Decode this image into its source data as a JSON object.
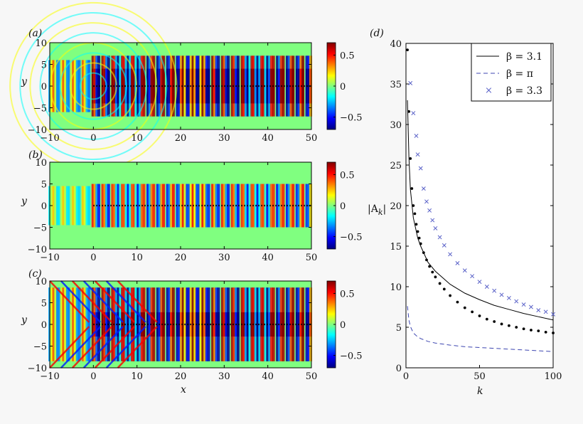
{
  "figure": {
    "panels": [
      {
        "id": "a",
        "label": "(a)"
      },
      {
        "id": "b",
        "label": "(b)"
      },
      {
        "id": "c",
        "label": "(c)"
      },
      {
        "id": "d",
        "label": "(d)"
      }
    ]
  },
  "chart_data": [
    {
      "type": "heatmap",
      "panel_label": "(a)",
      "xlabel": "",
      "ylabel": "y",
      "xlim": [
        -10,
        50
      ],
      "ylim": [
        -10,
        10
      ],
      "xticks": [
        "−10",
        "0",
        "10",
        "20",
        "30",
        "40",
        "50"
      ],
      "yticks": [
        "10",
        "5",
        "0",
        "−5",
        "−10"
      ],
      "colorbar": {
        "range": [
          -0.7,
          0.7
        ],
        "ticks": [
          "0.5",
          "0",
          "−0.5"
        ],
        "colormap": "jet"
      },
      "array_line": {
        "y": 0,
        "x_range": [
          0,
          50
        ]
      }
    },
    {
      "type": "heatmap",
      "panel_label": "(b)",
      "xlabel": "",
      "ylabel": "y",
      "xlim": [
        -10,
        50
      ],
      "ylim": [
        -10,
        10
      ],
      "xticks": [
        "−10",
        "0",
        "10",
        "20",
        "30",
        "40",
        "50"
      ],
      "yticks": [
        "10",
        "5",
        "0",
        "−5",
        "−10"
      ],
      "colorbar": {
        "range": [
          -0.7,
          0.7
        ],
        "ticks": [
          "0.5",
          "0",
          "−0.5"
        ],
        "colormap": "jet"
      },
      "array_line": {
        "y": 0,
        "x_range": [
          0,
          50
        ]
      }
    },
    {
      "type": "heatmap",
      "panel_label": "(c)",
      "xlabel": "x",
      "ylabel": "y",
      "xlim": [
        -10,
        50
      ],
      "ylim": [
        -10,
        10
      ],
      "xticks": [
        "−10",
        "0",
        "10",
        "20",
        "30",
        "40",
        "50"
      ],
      "yticks": [
        "10",
        "5",
        "0",
        "−5",
        "−10"
      ],
      "colorbar": {
        "range": [
          -0.7,
          0.7
        ],
        "ticks": [
          "0.5",
          "0",
          "−0.5"
        ],
        "colormap": "jet"
      },
      "array_line": {
        "y": 0,
        "x_range": [
          0,
          50
        ]
      }
    },
    {
      "type": "line",
      "panel_label": "(d)",
      "xlabel": "k",
      "ylabel": "|A",
      "ylabel_sub": "k",
      "ylabel_end": "|",
      "xlim": [
        0,
        100
      ],
      "ylim": [
        0,
        40
      ],
      "xticks": [
        "0",
        "50",
        "100"
      ],
      "yticks": [
        "40",
        "35",
        "30",
        "25",
        "20",
        "15",
        "10",
        "5",
        "0"
      ],
      "legend": {
        "position": "top-right"
      },
      "series": [
        {
          "name": "β = 3.1",
          "style": "solid",
          "color": "#000000",
          "x": [
            1,
            2,
            3,
            5,
            8,
            10,
            15,
            20,
            30,
            40,
            50,
            60,
            70,
            80,
            90,
            100
          ],
          "values": [
            33,
            26,
            22,
            18.5,
            16,
            15,
            13,
            11.9,
            10.3,
            9.2,
            8.4,
            7.7,
            7.2,
            6.7,
            6.3,
            5.9
          ]
        },
        {
          "name": "β = π",
          "style": "dashed",
          "color": "#3c45b0",
          "x": [
            1,
            2,
            3,
            5,
            8,
            10,
            15,
            20,
            30,
            40,
            50,
            60,
            70,
            80,
            90,
            100
          ],
          "values": [
            7.6,
            5.9,
            5.1,
            4.3,
            3.8,
            3.6,
            3.25,
            3.05,
            2.8,
            2.6,
            2.5,
            2.4,
            2.3,
            2.2,
            2.1,
            2.0
          ]
        },
        {
          "name": "β = 3.3",
          "style": "cross",
          "color": "#5a62c8",
          "x": [
            3,
            5,
            7,
            8,
            10,
            12,
            14,
            16,
            18,
            20,
            23,
            26,
            30,
            35,
            40,
            45,
            50,
            55,
            60,
            65,
            70,
            75,
            80,
            85,
            90,
            95,
            100
          ],
          "values": [
            35.1,
            31.4,
            28.6,
            26.3,
            24.6,
            22.1,
            20.5,
            19.4,
            18.2,
            17.2,
            16.1,
            15.1,
            14.0,
            12.9,
            12.0,
            11.3,
            10.6,
            10.0,
            9.5,
            9.0,
            8.6,
            8.2,
            7.8,
            7.5,
            7.1,
            6.9,
            6.6
          ]
        },
        {
          "name": "",
          "style": "dots",
          "color": "#000000",
          "x": [
            1,
            2,
            3,
            4,
            5,
            6,
            7,
            8,
            9,
            10,
            12,
            14,
            16,
            18,
            20,
            23,
            26,
            30,
            35,
            40,
            45,
            50,
            55,
            60,
            65,
            70,
            75,
            80,
            85,
            90,
            95,
            100
          ],
          "values": [
            39.2,
            31.6,
            25.8,
            22.1,
            20.0,
            19.0,
            17.7,
            16.8,
            16.0,
            15.3,
            14.2,
            13.3,
            12.5,
            11.8,
            11.2,
            10.4,
            9.7,
            8.9,
            8.1,
            7.4,
            6.9,
            6.4,
            6.0,
            5.7,
            5.4,
            5.2,
            5.0,
            4.8,
            4.65,
            4.55,
            4.4,
            4.3
          ]
        }
      ]
    }
  ]
}
